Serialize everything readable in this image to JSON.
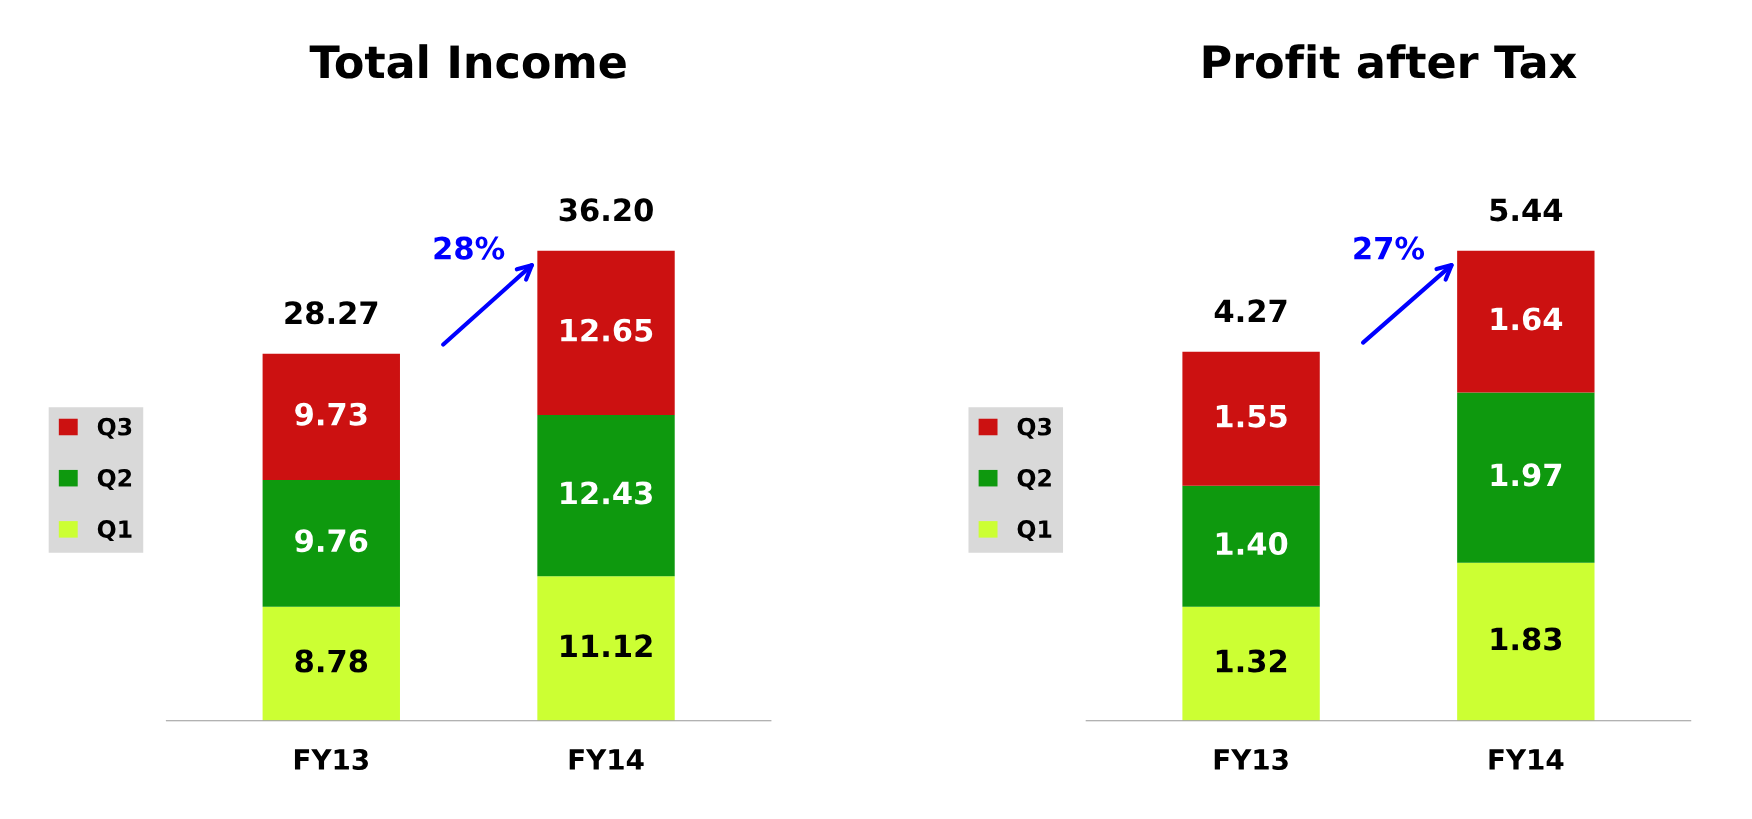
{
  "chart_data": [
    {
      "type": "bar",
      "title": "Total Income",
      "categories": [
        "FY13",
        "FY14"
      ],
      "stacked": true,
      "data_labels": true,
      "legend": "left",
      "tick_labels": "x",
      "grid": false,
      "series": [
        {
          "name": "Q1",
          "color": "#ccff33",
          "values": [
            8.78,
            11.12
          ]
        },
        {
          "name": "Q2",
          "color": "#0e990e",
          "values": [
            9.76,
            12.43
          ]
        },
        {
          "name": "Q3",
          "color": "#cc1111",
          "values": [
            9.73,
            12.65
          ]
        }
      ],
      "totals": [
        "28.27",
        "36.20"
      ],
      "annotations": [
        "28%"
      ]
    },
    {
      "type": "bar",
      "title": "Profit after Tax",
      "categories": [
        "FY13",
        "FY14"
      ],
      "stacked": true,
      "legend": "left",
      "tick_labels": "x",
      "grid": false,
      "series": [
        {
          "name": "Q1",
          "color": "#ccff33",
          "values": [
            1.32,
            1.83
          ],
          "value_labels": [
            "1.32",
            "1.83"
          ]
        },
        {
          "name": "Q2",
          "color": "#0e990e",
          "values": [
            1.4,
            1.97
          ],
          "value_labels": [
            "1.40",
            "1.97"
          ]
        },
        {
          "name": "Q3",
          "color": "#cc1111",
          "values": [
            1.55,
            1.64
          ],
          "value_labels": [
            "1.55",
            "1.64"
          ]
        }
      ],
      "totals": [
        "4.27",
        "5.44"
      ],
      "annotations": [
        "27%"
      ]
    }
  ]
}
